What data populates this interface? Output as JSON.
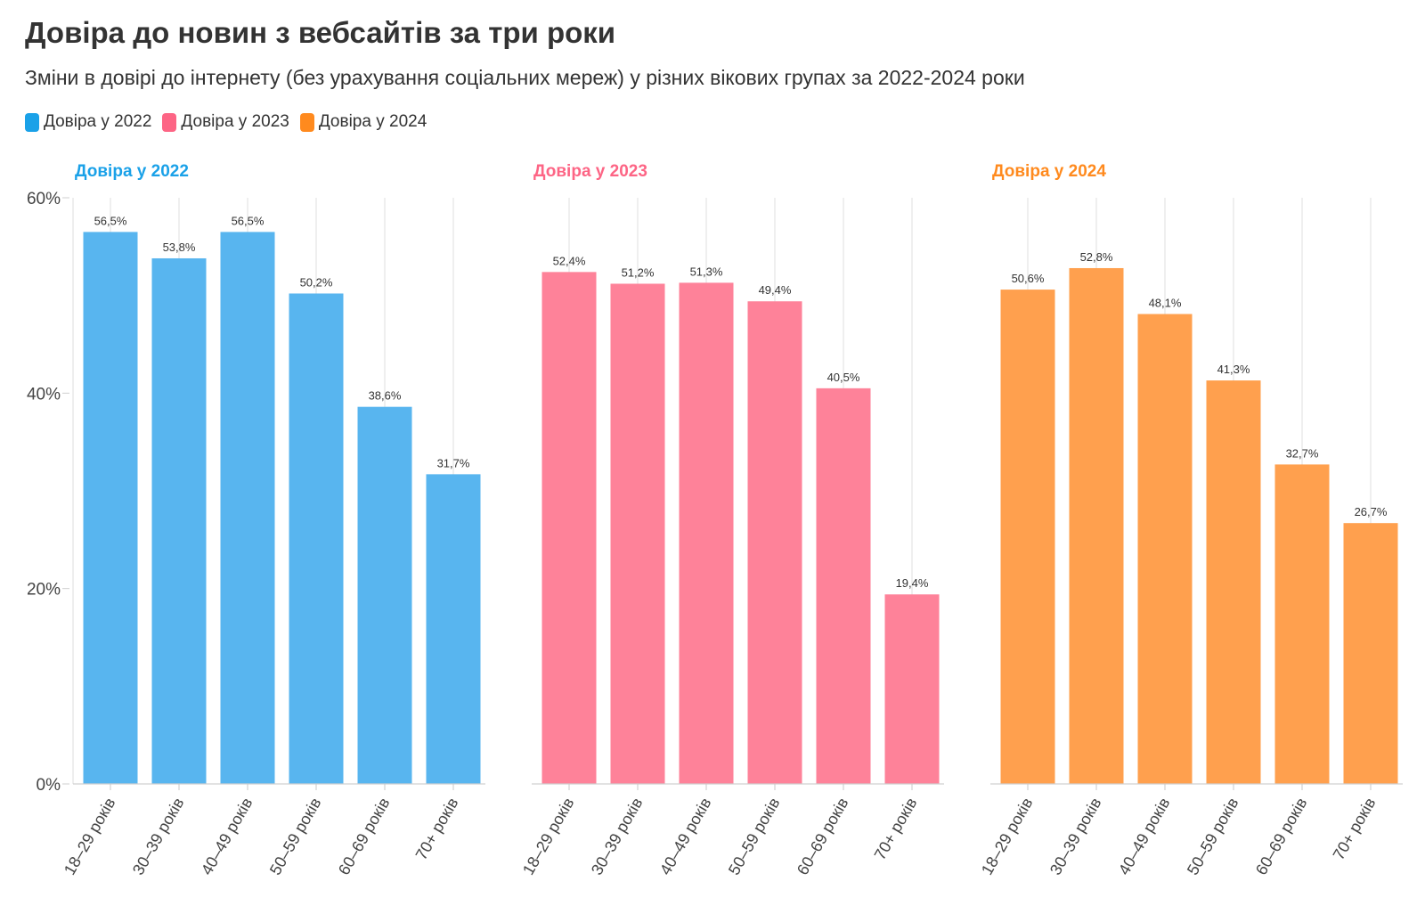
{
  "title": "Довіра до новин з вебсайтів за три роки",
  "subtitle": "Зміни в довірі до інтернету (без урахування соціальних мереж) у різних вікових групах за 2022-2024 роки",
  "legend": [
    {
      "label": "Довіра у 2022",
      "color": "#1aa1e8"
    },
    {
      "label": "Довіра у 2023",
      "color": "#fd6585"
    },
    {
      "label": "Довіра у 2024",
      "color": "#ff8a1e"
    }
  ],
  "chart_data": {
    "type": "bar",
    "layout": "small-multiples",
    "categories": [
      "18–29 років",
      "30–39 років",
      "40–49 років",
      "50–59 років",
      "60–69 років",
      "70+ років"
    ],
    "ylim": [
      0,
      60
    ],
    "yticks": [
      0,
      20,
      40,
      60
    ],
    "ytick_labels": [
      "0%",
      "20%",
      "40%",
      "60%"
    ],
    "grid": "vertical",
    "legend_position": "top-left",
    "series": [
      {
        "name": "Довіра у 2022",
        "color": "#1aa1e8",
        "bar_color": "#58b5ef",
        "values": [
          56.5,
          53.8,
          56.5,
          50.2,
          38.6,
          31.7
        ],
        "labels": [
          "56,5%",
          "53,8%",
          "56,5%",
          "50,2%",
          "38,6%",
          "31,7%"
        ]
      },
      {
        "name": "Довіра у 2023",
        "color": "#fd6585",
        "bar_color": "#fe8299",
        "values": [
          52.4,
          51.2,
          51.3,
          49.4,
          40.5,
          19.4
        ],
        "labels": [
          "52,4%",
          "51,2%",
          "51,3%",
          "49,4%",
          "40,5%",
          "19,4%"
        ]
      },
      {
        "name": "Довіра у 2024",
        "color": "#ff8a1e",
        "bar_color": "#ffa04e",
        "values": [
          50.6,
          52.8,
          48.1,
          41.3,
          32.7,
          26.7
        ],
        "labels": [
          "50,6%",
          "52,8%",
          "48,1%",
          "41,3%",
          "32,7%",
          "26,7%"
        ]
      }
    ]
  }
}
